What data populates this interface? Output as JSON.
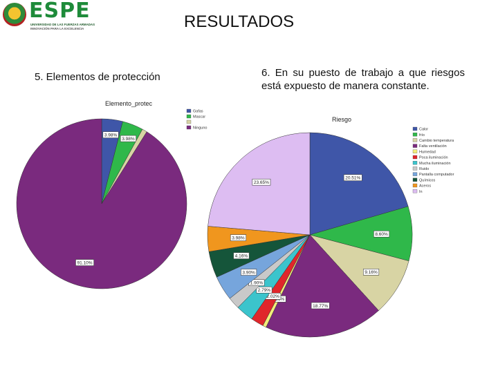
{
  "header": {
    "logo_word": "ESPE",
    "logo_sub1": "UNIVERSIDAD DE LAS FUERZAS ARMADAS",
    "logo_sub2": "INNOVACIÓN PARA LA EXCELENCIA",
    "title": "RESULTADOS"
  },
  "question5": {
    "label": "5. Elementos de protección"
  },
  "question6": {
    "label": "6. En su puesto de trabajo a que riesgos está expuesto de manera constante."
  },
  "chart_data": [
    {
      "type": "pie",
      "title": "Elemento_protec",
      "legend_position": "right",
      "slices": [
        {
          "name": "Gafas",
          "value": 3.98,
          "label": "3.98%",
          "color": "#3f56a8"
        },
        {
          "name": "Mascar",
          "value": 3.98,
          "label": "3.98%",
          "color": "#2fb84a"
        },
        {
          "name": "",
          "value": 0.94,
          "label": "",
          "color": "#d8d4a4"
        },
        {
          "name": "Ninguno",
          "value": 91.1,
          "label": "91.10%",
          "color": "#7a2a7e"
        }
      ]
    },
    {
      "type": "pie",
      "title": "Riesgo",
      "legend_position": "right",
      "slices": [
        {
          "name": "Calor",
          "value": 20.51,
          "label": "20.51%",
          "color": "#3f56a8"
        },
        {
          "name": "frío",
          "value": 8.6,
          "label": "8.60%",
          "color": "#2fb84a"
        },
        {
          "name": "Cambio temperatura",
          "value": 9.16,
          "label": "9.16%",
          "color": "#d8d4a4"
        },
        {
          "name": "Falta ventilación",
          "value": 18.77,
          "label": "18.77%",
          "color": "#7a2a7e"
        },
        {
          "name": "Humedad",
          "value": 0.56,
          "label": "0.56%",
          "color": "#f2ed7a"
        },
        {
          "name": "Poca iluminación",
          "value": 2.02,
          "label": "2.02%",
          "color": "#e0262b"
        },
        {
          "name": "Mucha iluminación",
          "value": 2.79,
          "label": "2.79%",
          "color": "#3bc4cc"
        },
        {
          "name": "Ruido",
          "value": 1.9,
          "label": "1.90%",
          "color": "#c9c9c9"
        },
        {
          "name": "Pantalla computador",
          "value": 3.9,
          "label": "3.90%",
          "color": "#76a5dc"
        },
        {
          "name": "Químicos",
          "value": 4.16,
          "label": "4.16%",
          "color": "#15553a"
        },
        {
          "name": "Aceros",
          "value": 3.98,
          "label": "3.98%",
          "color": "#f0961e"
        },
        {
          "name": "In",
          "value": 23.65,
          "label": "23.65%",
          "color": "#ddbdf2"
        }
      ]
    }
  ]
}
